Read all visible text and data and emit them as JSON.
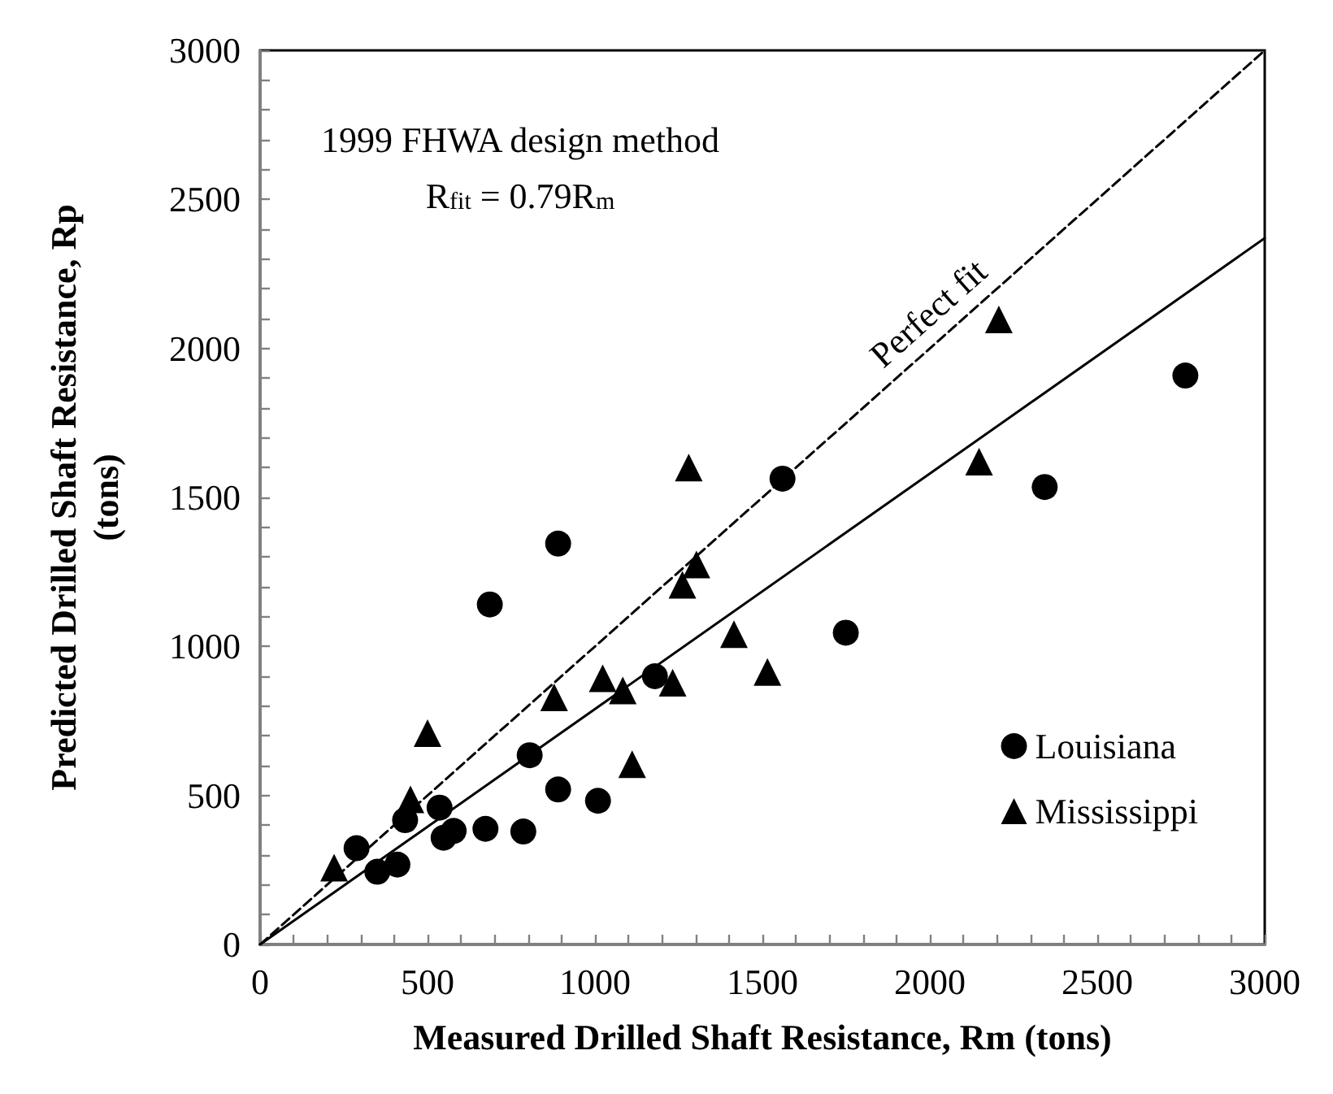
{
  "chart_data": {
    "type": "scatter",
    "xlabel": "Measured Drilled Shaft Resistance, Rm (tons)",
    "ylabel": "Predicted Drilled Shaft Resistance, Rp\n(tons)",
    "annotations": [
      "1999 FHWA design method",
      "R$_{fit}$ = 0.79R$_{m}$",
      {
        "text": "Perfect fit",
        "x": 2050,
        "y": 2050
      }
    ],
    "series": [
      {
        "name": "Louisiana",
        "color": "#000000",
        "marker": "circle",
        "x": [
          288,
          350,
          410,
          433,
          536,
          548,
          578,
          673,
          686,
          786,
          805,
          890,
          890,
          1009,
          1179,
          1560,
          1749,
          2343,
          2763
        ],
        "values": [
          323,
          244,
          268,
          417,
          459,
          358,
          381,
          388,
          1141,
          379,
          635,
          1345,
          520,
          482,
          900,
          1563,
          1046,
          1535,
          1909
        ]
      },
      {
        "name": "Mississippi",
        "color": "#000000",
        "marker": "triangle",
        "x": [
          221,
          449,
          500,
          878,
          1023,
          1083,
          1111,
          1232,
          1261,
          1280,
          1303,
          1415,
          1515,
          2147,
          2206
        ],
        "values": [
          258,
          487,
          709,
          829,
          893,
          852,
          605,
          878,
          1207,
          1600,
          1275,
          1041,
          914,
          1620,
          2097
        ]
      },
      {
        "type": "line",
        "color": "#000000",
        "marker": "none",
        "line_style": "solid",
        "x": [
          0,
          3000
        ],
        "values": [
          0,
          2370
        ]
      },
      {
        "type": "line",
        "color": "#000000",
        "marker": "none",
        "line_style": "dashed",
        "x": [
          0,
          3000
        ],
        "values": [
          0,
          3000
        ]
      }
    ],
    "xlim": [
      0,
      3000
    ],
    "ylim": [
      0,
      3000
    ],
    "xticks": [
      0,
      {
        "value": 100,
        "label": null
      },
      {
        "value": 200,
        "label": null
      },
      {
        "value": 300,
        "label": null
      },
      {
        "value": 400,
        "label": null
      },
      500,
      {
        "value": 600,
        "label": null
      },
      {
        "value": 700,
        "label": null
      },
      {
        "value": 800,
        "label": null
      },
      {
        "value": 900,
        "label": null
      },
      1000,
      {
        "value": 1100,
        "label": null
      },
      {
        "value": 1200,
        "label": null
      },
      {
        "value": 1300,
        "label": null
      },
      {
        "value": 1400,
        "label": null
      },
      1500,
      {
        "value": 1600,
        "label": null
      },
      {
        "value": 1700,
        "label": null
      },
      {
        "value": 1800,
        "label": null
      },
      {
        "value": 1900,
        "label": null
      },
      2000,
      {
        "value": 2100,
        "label": null
      },
      {
        "value": 2200,
        "label": null
      },
      {
        "value": 2300,
        "label": null
      },
      {
        "value": 2400,
        "label": null
      },
      2500,
      {
        "value": 2600,
        "label": null
      },
      {
        "value": 2700,
        "label": null
      },
      {
        "value": 2800,
        "label": null
      },
      {
        "value": 2900,
        "label": null
      },
      3000
    ],
    "yticks": [
      0,
      {
        "value": 100,
        "label": null
      },
      {
        "value": 200,
        "label": null
      },
      {
        "value": 300,
        "label": null
      },
      {
        "value": 400,
        "label": null
      },
      500,
      {
        "value": 600,
        "label": null
      },
      {
        "value": 700,
        "label": null
      },
      {
        "value": 800,
        "label": null
      },
      {
        "value": 900,
        "label": null
      },
      1000,
      {
        "value": 1100,
        "label": null
      },
      {
        "value": 1200,
        "label": null
      },
      {
        "value": 1300,
        "label": null
      },
      {
        "value": 1400,
        "label": null
      },
      1500,
      {
        "value": 1600,
        "label": null
      },
      {
        "value": 1700,
        "label": null
      },
      {
        "value": 1800,
        "label": null
      },
      {
        "value": 1900,
        "label": null
      },
      2000,
      {
        "value": 2100,
        "label": null
      },
      {
        "value": 2200,
        "label": null
      },
      {
        "value": 2300,
        "label": null
      },
      {
        "value": 2400,
        "label": null
      },
      2500,
      {
        "value": 2600,
        "label": null
      },
      {
        "value": 2700,
        "label": null
      },
      {
        "value": 2800,
        "label": null
      },
      {
        "value": 2900,
        "label": null
      },
      3000
    ],
    "grid": false,
    "legend": "bottom right"
  }
}
